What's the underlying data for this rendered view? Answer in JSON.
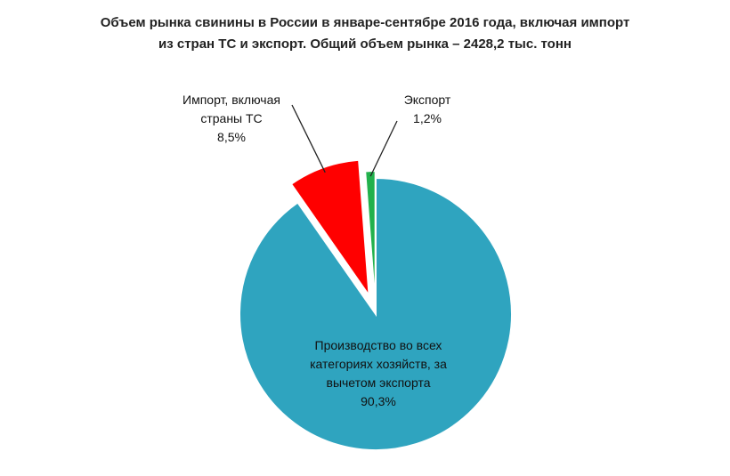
{
  "chart_data": {
    "type": "pie",
    "title_line1": "Объем рынка свинины в России в январе-сентябре 2016 года, включая импорт",
    "title_line2": "из стран ТС и экспорт. Общий объем рынка – 2428,2 тыс. тонн",
    "slices": [
      {
        "label": "Импорт, включая страны ТС",
        "value": 8.5,
        "value_text": "8,5%",
        "color": "#ff0000"
      },
      {
        "label": "Экспорт",
        "value": 1.2,
        "value_text": "1,2%",
        "color": "#22b14c"
      },
      {
        "label": "Производство во всех категориях хозяйств, за вычетом экспорта",
        "value": 90.3,
        "value_text": "90,3%",
        "color": "#2fa4bf"
      }
    ]
  },
  "labels": {
    "import_line1": "Импорт, включая",
    "import_line2": "страны ТС",
    "export": "Экспорт",
    "production_line1": "Производство во всех",
    "production_line2": "категориях хозяйств, за",
    "production_line3": "вычетом экспорта"
  }
}
